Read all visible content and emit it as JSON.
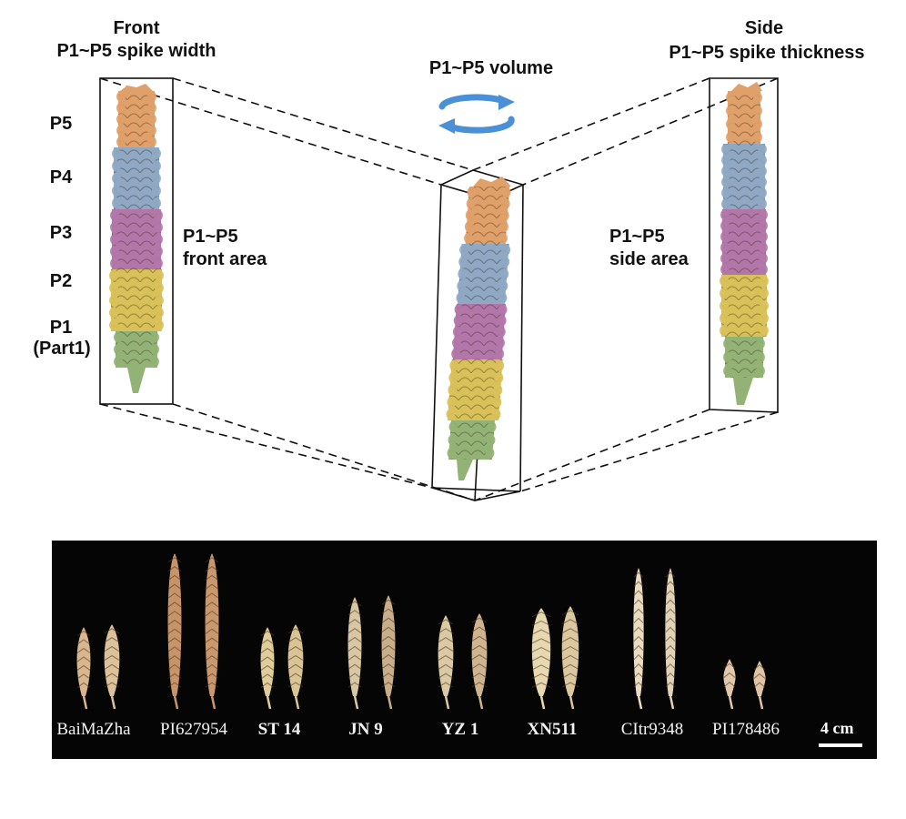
{
  "labels": {
    "front_title": "Front",
    "front_subtitle": "P1~P5 spike width",
    "volume": "P1~P5 volume",
    "side_title": "Side",
    "side_subtitle": "P1~P5 spike thickness",
    "p5": "P5",
    "p4": "P4",
    "p3": "P3",
    "p2": "P2",
    "p1": "P1",
    "p1_part": "(Part1)",
    "front_area_1": "P1~P5",
    "front_area_2": "front area",
    "side_area_1": "P1~P5",
    "side_area_2": "side area"
  },
  "segment_colors": {
    "p5": "#E0A06A",
    "p4": "#8FA8C4",
    "p3": "#B277A8",
    "p2": "#D9C15A",
    "p1": "#93B376"
  },
  "rotation_arrow_color": "#4A90D6",
  "gallery": {
    "varieties": [
      "BaiMaZha",
      "PI627954",
      "ST 14",
      "JN 9",
      "YZ 1",
      "XN511",
      "CItr9348",
      "PI178486"
    ],
    "scale_label": "4 cm"
  }
}
